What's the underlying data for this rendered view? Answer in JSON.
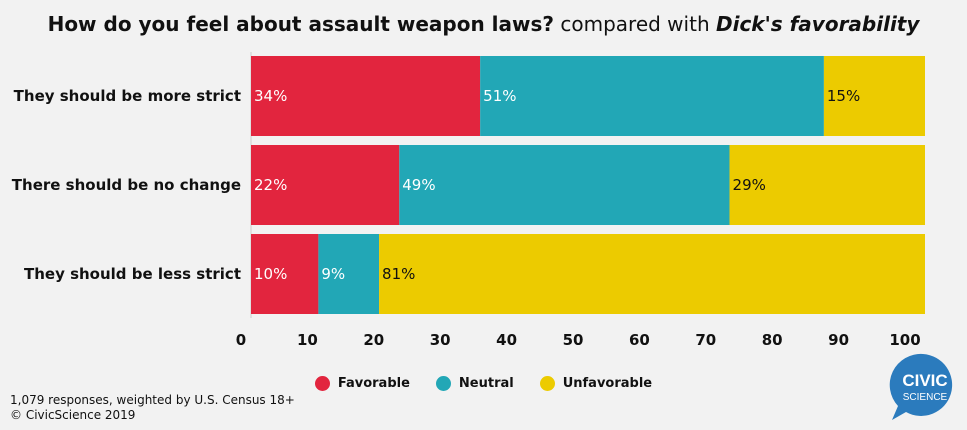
{
  "title": {
    "bold": "How do you feel about assault weapon laws?",
    "normal": "compared with",
    "italic": "Dick's favorability"
  },
  "chart_data": {
    "type": "bar",
    "orientation": "horizontal",
    "stacked": true,
    "categories": [
      "They should be more strict",
      "There should be no change",
      "They should be less strict"
    ],
    "series": [
      {
        "name": "Favorable",
        "color": "#e2253e",
        "values": [
          34,
          22,
          10
        ],
        "labels": [
          "34%",
          "22%",
          "10%"
        ]
      },
      {
        "name": "Neutral",
        "color": "#22a7b6",
        "values": [
          51,
          49,
          9
        ],
        "labels": [
          "51%",
          "49%",
          "9%"
        ]
      },
      {
        "name": "Unfavorable",
        "color": "#eccb00",
        "values": [
          15,
          29,
          81
        ],
        "labels": [
          "15%",
          "29%",
          "81%"
        ]
      }
    ],
    "xlim": [
      0,
      100
    ],
    "xticks": [
      "0",
      "10",
      "20",
      "30",
      "40",
      "50",
      "60",
      "70",
      "80",
      "90",
      "100"
    ],
    "legend_position": "bottom",
    "grid": false
  },
  "footnote": {
    "line1": "1,079 responses, weighted by U.S. Census 18+",
    "line2": "© CivicScience 2019"
  },
  "logo": {
    "line1": "CIVIC",
    "line2": "SCIENCE",
    "color": "#2b7bbd"
  }
}
